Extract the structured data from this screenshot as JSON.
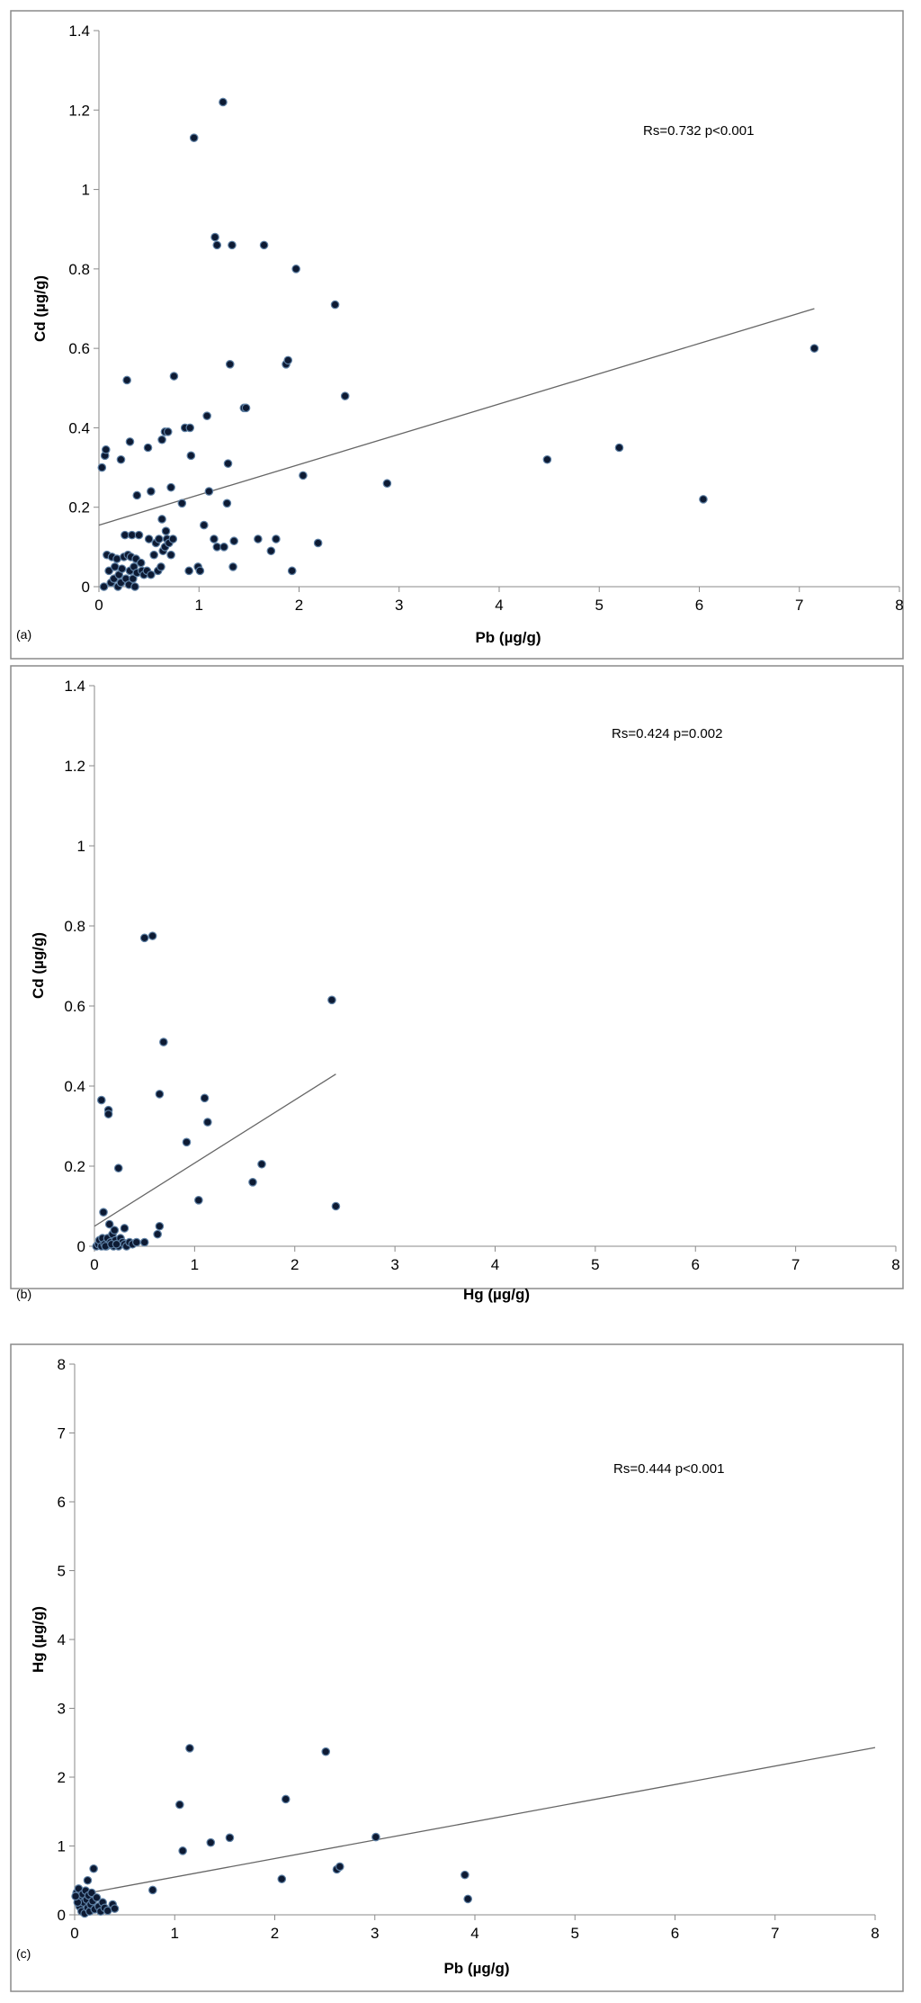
{
  "figure": {
    "panel_tags": [
      "(a)",
      "(b)",
      "(c)"
    ]
  },
  "chart_data": [
    {
      "type": "scatter",
      "panel": "(a)",
      "xlabel": "Pb (µg/g)",
      "ylabel": "Cd  (µg/g)",
      "xlim": [
        0,
        8
      ],
      "ylim": [
        0,
        1.4
      ],
      "xticks": [
        0,
        1,
        2,
        3,
        4,
        5,
        6,
        7,
        8
      ],
      "yticks": [
        0,
        0.2,
        0.4,
        0.6,
        0.8,
        1,
        1.2,
        1.4
      ],
      "annotation": "Rs=0.732  p<0.001",
      "trendline": {
        "x": [
          0,
          7.15
        ],
        "y": [
          0.155,
          0.7
        ]
      },
      "points": [
        [
          0.03,
          0.3
        ],
        [
          0.06,
          0.33
        ],
        [
          0.07,
          0.345
        ],
        [
          0.22,
          0.32
        ],
        [
          0.28,
          0.52
        ],
        [
          0.31,
          0.365
        ],
        [
          0.38,
          0.23
        ],
        [
          0.49,
          0.35
        ],
        [
          0.52,
          0.24
        ],
        [
          0.63,
          0.37
        ],
        [
          0.66,
          0.39
        ],
        [
          0.69,
          0.39
        ],
        [
          0.72,
          0.25
        ],
        [
          0.75,
          0.53
        ],
        [
          0.86,
          0.4
        ],
        [
          0.91,
          0.4
        ],
        [
          0.92,
          0.33
        ],
        [
          0.95,
          1.13
        ],
        [
          1.05,
          0.155
        ],
        [
          1.08,
          0.43
        ],
        [
          1.1,
          0.24
        ],
        [
          1.15,
          0.12
        ],
        [
          1.16,
          0.88
        ],
        [
          1.18,
          0.86
        ],
        [
          1.18,
          0.1
        ],
        [
          1.24,
          1.22
        ],
        [
          1.25,
          0.1
        ],
        [
          1.28,
          0.21
        ],
        [
          1.29,
          0.31
        ],
        [
          1.31,
          0.56
        ],
        [
          1.33,
          0.86
        ],
        [
          1.35,
          0.115
        ],
        [
          1.34,
          0.05
        ],
        [
          1.45,
          0.45
        ],
        [
          1.47,
          0.45
        ],
        [
          1.59,
          0.12
        ],
        [
          1.65,
          0.86
        ],
        [
          1.72,
          0.09
        ],
        [
          1.77,
          0.12
        ],
        [
          1.87,
          0.56
        ],
        [
          1.89,
          0.57
        ],
        [
          1.93,
          0.04
        ],
        [
          1.97,
          0.8
        ],
        [
          2.04,
          0.28
        ],
        [
          2.19,
          0.11
        ],
        [
          2.36,
          0.71
        ],
        [
          2.46,
          0.48
        ],
        [
          2.88,
          0.26
        ],
        [
          4.48,
          0.32
        ],
        [
          5.2,
          0.35
        ],
        [
          6.04,
          0.22
        ],
        [
          7.15,
          0.6
        ],
        [
          0.05,
          0.0
        ],
        [
          0.08,
          0.08
        ],
        [
          0.1,
          0.04
        ],
        [
          0.12,
          0.01
        ],
        [
          0.13,
          0.075
        ],
        [
          0.15,
          0.02
        ],
        [
          0.16,
          0.05
        ],
        [
          0.18,
          0.07
        ],
        [
          0.19,
          0.0
        ],
        [
          0.2,
          0.03
        ],
        [
          0.22,
          0.01
        ],
        [
          0.23,
          0.045
        ],
        [
          0.25,
          0.075
        ],
        [
          0.26,
          0.13
        ],
        [
          0.27,
          0.02
        ],
        [
          0.29,
          0.08
        ],
        [
          0.3,
          0.005
        ],
        [
          0.31,
          0.04
        ],
        [
          0.32,
          0.075
        ],
        [
          0.33,
          0.13
        ],
        [
          0.34,
          0.02
        ],
        [
          0.35,
          0.05
        ],
        [
          0.36,
          0.0
        ],
        [
          0.37,
          0.07
        ],
        [
          0.38,
          0.035
        ],
        [
          0.4,
          0.13
        ],
        [
          0.42,
          0.06
        ],
        [
          0.43,
          0.04
        ],
        [
          0.45,
          0.03
        ],
        [
          0.48,
          0.04
        ],
        [
          0.5,
          0.12
        ],
        [
          0.52,
          0.03
        ],
        [
          0.55,
          0.08
        ],
        [
          0.57,
          0.11
        ],
        [
          0.59,
          0.04
        ],
        [
          0.6,
          0.12
        ],
        [
          0.62,
          0.05
        ],
        [
          0.63,
          0.17
        ],
        [
          0.64,
          0.09
        ],
        [
          0.66,
          0.1
        ],
        [
          0.67,
          0.14
        ],
        [
          0.68,
          0.12
        ],
        [
          0.7,
          0.11
        ],
        [
          0.72,
          0.08
        ],
        [
          0.74,
          0.12
        ],
        [
          0.83,
          0.21
        ],
        [
          0.9,
          0.04
        ],
        [
          0.99,
          0.05
        ],
        [
          1.01,
          0.04
        ]
      ]
    },
    {
      "type": "scatter",
      "panel": "(b)",
      "xlabel": "Hg (µg/g)",
      "ylabel": "Cd (µg/g)",
      "xlim": [
        0,
        8
      ],
      "ylim": [
        0,
        1.4
      ],
      "xticks": [
        0,
        1,
        2,
        3,
        4,
        5,
        6,
        7,
        8
      ],
      "yticks": [
        0,
        0.2,
        0.4,
        0.6,
        0.8,
        1,
        1.2,
        1.4
      ],
      "annotation": "Rs=0.424 p=0.002",
      "trendline": {
        "x": [
          0,
          2.41
        ],
        "y": [
          0.05,
          0.43
        ]
      },
      "points": [
        [
          0.07,
          0.365
        ],
        [
          0.14,
          0.34
        ],
        [
          0.14,
          0.33
        ],
        [
          0.09,
          0.085
        ],
        [
          0.24,
          0.195
        ],
        [
          0.5,
          0.77
        ],
        [
          0.58,
          0.775
        ],
        [
          0.65,
          0.38
        ],
        [
          0.69,
          0.51
        ],
        [
          0.92,
          0.26
        ],
        [
          1.04,
          0.115
        ],
        [
          1.1,
          0.37
        ],
        [
          1.13,
          0.31
        ],
        [
          1.58,
          0.16
        ],
        [
          1.67,
          0.205
        ],
        [
          2.37,
          0.615
        ],
        [
          2.41,
          0.1
        ],
        [
          0.65,
          0.05
        ],
        [
          0.63,
          0.03
        ],
        [
          0.3,
          0.045
        ],
        [
          0.02,
          0.0
        ],
        [
          0.04,
          0.005
        ],
        [
          0.05,
          0.015
        ],
        [
          0.07,
          0.0
        ],
        [
          0.08,
          0.02
        ],
        [
          0.1,
          0.005
        ],
        [
          0.12,
          0.0
        ],
        [
          0.13,
          0.02
        ],
        [
          0.15,
          0.055
        ],
        [
          0.16,
          0.01
        ],
        [
          0.18,
          0.03
        ],
        [
          0.19,
          0.0
        ],
        [
          0.2,
          0.04
        ],
        [
          0.21,
          0.015
        ],
        [
          0.23,
          0.005
        ],
        [
          0.24,
          0.0
        ],
        [
          0.26,
          0.02
        ],
        [
          0.28,
          0.01
        ],
        [
          0.3,
          0.005
        ],
        [
          0.32,
          0.0
        ],
        [
          0.35,
          0.01
        ],
        [
          0.38,
          0.005
        ],
        [
          0.42,
          0.01
        ],
        [
          0.5,
          0.01
        ],
        [
          0.11,
          0.0
        ],
        [
          0.17,
          0.005
        ],
        [
          0.22,
          0.005
        ]
      ]
    },
    {
      "type": "scatter",
      "panel": "(c)",
      "xlabel": "Pb (µg/g)",
      "ylabel": "Hg (µg/g)",
      "xlim": [
        0,
        8
      ],
      "ylim": [
        0,
        8
      ],
      "xticks": [
        0,
        1,
        2,
        3,
        4,
        5,
        6,
        7,
        8
      ],
      "yticks": [
        0,
        1,
        2,
        3,
        4,
        5,
        6,
        7,
        8
      ],
      "annotation": "Rs=0.444 p<0.001",
      "trendline": {
        "x": [
          0,
          8
        ],
        "y": [
          0.28,
          2.43
        ]
      },
      "points": [
        [
          1.05,
          1.6
        ],
        [
          1.08,
          0.93
        ],
        [
          1.15,
          2.42
        ],
        [
          1.36,
          1.05
        ],
        [
          1.55,
          1.12
        ],
        [
          2.07,
          0.52
        ],
        [
          2.11,
          1.68
        ],
        [
          2.51,
          2.37
        ],
        [
          2.62,
          0.66
        ],
        [
          2.65,
          0.7
        ],
        [
          3.01,
          1.13
        ],
        [
          3.9,
          0.58
        ],
        [
          3.93,
          0.23
        ],
        [
          0.78,
          0.36
        ],
        [
          0.19,
          0.67
        ],
        [
          0.13,
          0.5
        ],
        [
          0.02,
          0.32
        ],
        [
          0.04,
          0.38
        ],
        [
          0.05,
          0.12
        ],
        [
          0.06,
          0.25
        ],
        [
          0.07,
          0.05
        ],
        [
          0.08,
          0.3
        ],
        [
          0.09,
          0.18
        ],
        [
          0.1,
          0.02
        ],
        [
          0.11,
          0.35
        ],
        [
          0.12,
          0.22
        ],
        [
          0.13,
          0.1
        ],
        [
          0.14,
          0.28
        ],
        [
          0.15,
          0.05
        ],
        [
          0.16,
          0.15
        ],
        [
          0.17,
          0.32
        ],
        [
          0.18,
          0.2
        ],
        [
          0.2,
          0.08
        ],
        [
          0.22,
          0.25
        ],
        [
          0.24,
          0.12
        ],
        [
          0.26,
          0.05
        ],
        [
          0.28,
          0.18
        ],
        [
          0.3,
          0.1
        ],
        [
          0.33,
          0.06
        ],
        [
          0.38,
          0.15
        ],
        [
          0.4,
          0.09
        ],
        [
          0.03,
          0.18
        ],
        [
          0.01,
          0.27
        ]
      ]
    }
  ]
}
